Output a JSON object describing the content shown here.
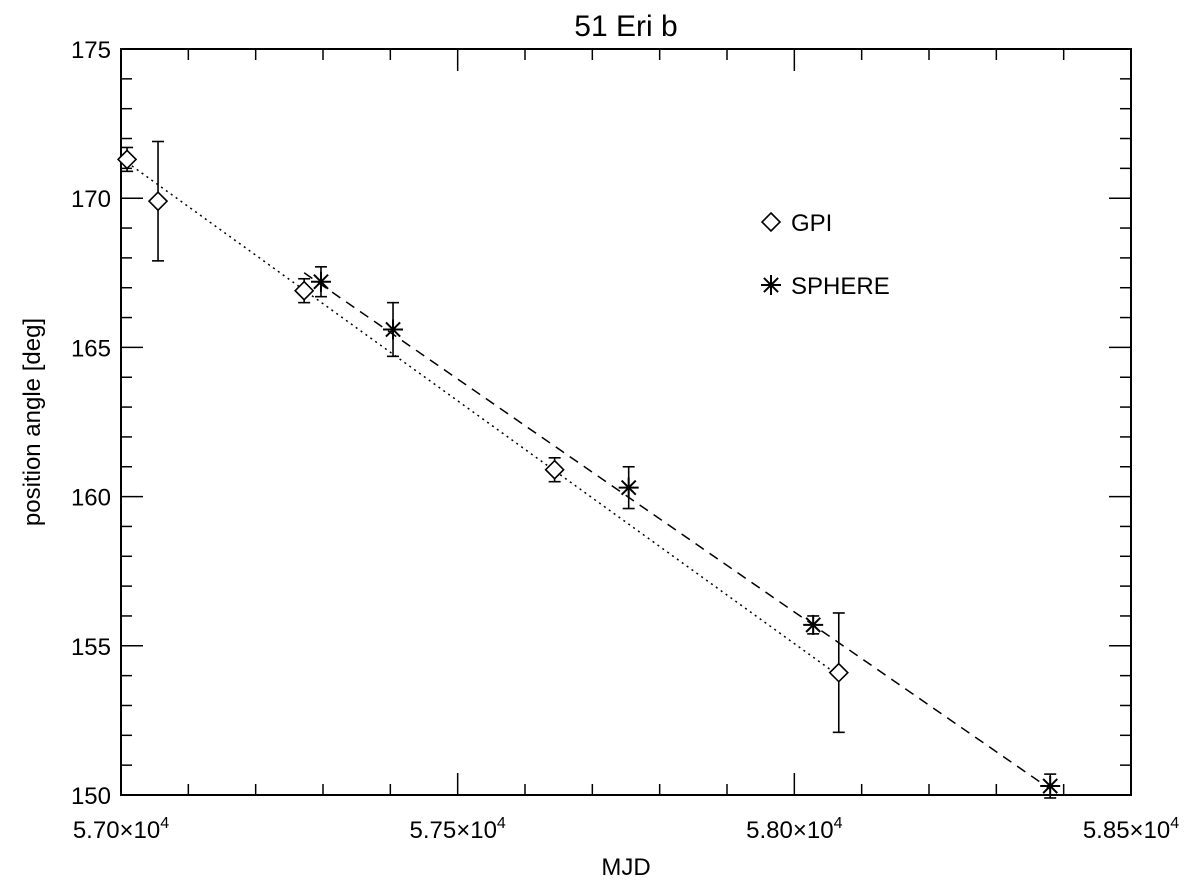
{
  "chart_data": {
    "type": "scatter",
    "title": "51 Eri b",
    "xlabel": "MJD",
    "ylabel": "position angle [deg]",
    "xlim": [
      57000,
      58500
    ],
    "ylim": [
      150,
      175
    ],
    "x_ticks": [
      {
        "value": 57000,
        "mantissa": "5.70",
        "exponent": "4"
      },
      {
        "value": 57500,
        "mantissa": "5.75",
        "exponent": "4"
      },
      {
        "value": 58000,
        "mantissa": "5.80",
        "exponent": "4"
      },
      {
        "value": 58500,
        "mantissa": "5.85",
        "exponent": "4"
      }
    ],
    "x_tick_base": "×10",
    "y_ticks": [
      "150",
      "155",
      "160",
      "165",
      "170",
      "175"
    ],
    "grid": false,
    "legend_position": "top-right",
    "series": [
      {
        "name": "GPI",
        "marker": "diamond",
        "fit_line": "dotted",
        "points": [
          {
            "x": 57009,
            "y": 171.3,
            "err": 0.4
          },
          {
            "x": 57055,
            "y": 169.9,
            "err": 2.0
          },
          {
            "x": 57272,
            "y": 166.9,
            "err": 0.4
          },
          {
            "x": 57644,
            "y": 160.9,
            "err": 0.4
          },
          {
            "x": 58066,
            "y": 154.1,
            "err": 2.0
          }
        ],
        "fit": [
          [
            57009,
            171.2
          ],
          [
            58066,
            154.0
          ]
        ]
      },
      {
        "name": "SPHERE",
        "marker": "asterisk",
        "fit_line": "dashed",
        "points": [
          {
            "x": 57297,
            "y": 167.2,
            "err": 0.5
          },
          {
            "x": 57404,
            "y": 165.6,
            "err": 0.9
          },
          {
            "x": 57754,
            "y": 160.3,
            "err": 0.7
          },
          {
            "x": 58028,
            "y": 155.7,
            "err": 0.3
          },
          {
            "x": 58380,
            "y": 150.3,
            "err": 0.4
          }
        ],
        "fit": [
          [
            57272,
            167.5
          ],
          [
            58380,
            150.2
          ]
        ]
      }
    ]
  }
}
